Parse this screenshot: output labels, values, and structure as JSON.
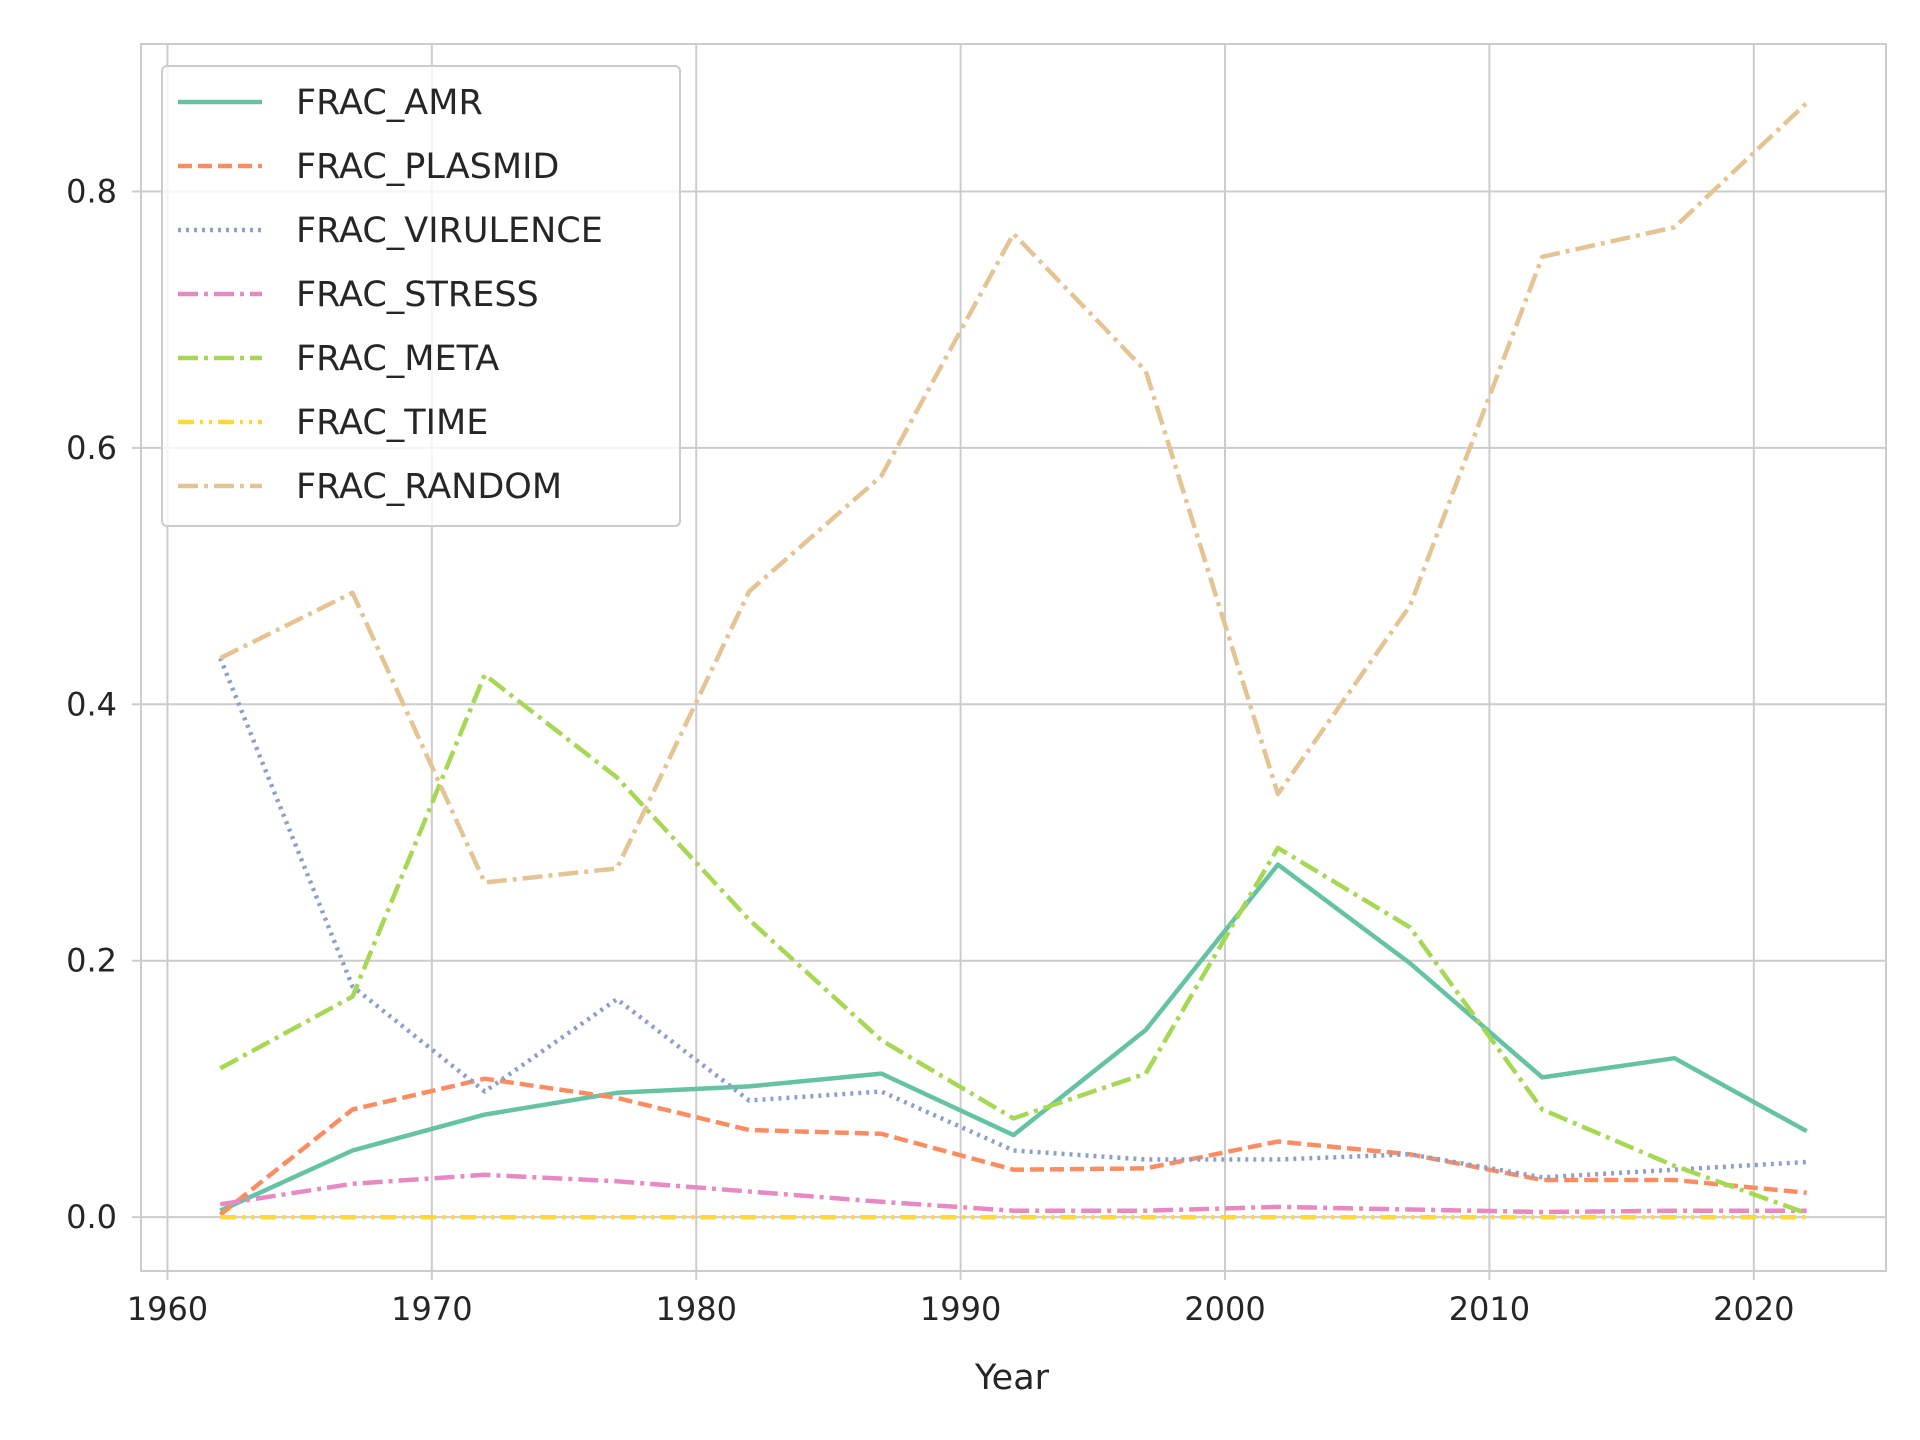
{
  "chart_data": {
    "type": "line",
    "title": "",
    "xlabel": "Year",
    "ylabel": "",
    "xlim": [
      1959,
      2025
    ],
    "ylim": [
      -0.042,
      0.915
    ],
    "xticks": [
      1960,
      1970,
      1980,
      1990,
      2000,
      2010,
      2020
    ],
    "yticks": [
      0.0,
      0.2,
      0.4,
      0.6,
      0.8
    ],
    "ytick_labels": [
      "0.0",
      "0.2",
      "0.4",
      "0.6",
      "0.8"
    ],
    "grid": true,
    "legend_position": "upper-left",
    "x": [
      1962,
      1967,
      1972,
      1977,
      1982,
      1987,
      1992,
      1997,
      2002,
      2007,
      2012,
      2017,
      2022
    ],
    "series": [
      {
        "name": "FRAC_AMR",
        "color": "#66c2a5",
        "dash": "solid",
        "values": [
          0.005,
          0.052,
          0.08,
          0.097,
          0.102,
          0.112,
          0.064,
          0.146,
          0.275,
          0.198,
          0.109,
          0.124,
          0.067
        ]
      },
      {
        "name": "FRAC_PLASMID",
        "color": "#fc8d62",
        "dash": "dashed",
        "values": [
          0.002,
          0.084,
          0.108,
          0.093,
          0.068,
          0.065,
          0.037,
          0.038,
          0.059,
          0.049,
          0.029,
          0.029,
          0.019
        ]
      },
      {
        "name": "FRAC_VIRULENCE",
        "color": "#8da0cb",
        "dash": "dotted",
        "values": [
          0.436,
          0.18,
          0.098,
          0.17,
          0.091,
          0.098,
          0.052,
          0.045,
          0.045,
          0.049,
          0.031,
          0.037,
          0.043
        ]
      },
      {
        "name": "FRAC_STRESS",
        "color": "#e78ac3",
        "dash": "dashdot",
        "values": [
          0.01,
          0.026,
          0.033,
          0.028,
          0.02,
          0.012,
          0.005,
          0.005,
          0.008,
          0.006,
          0.004,
          0.005,
          0.005
        ]
      },
      {
        "name": "FRAC_META",
        "color": "#a6d854",
        "dash": "dashdot",
        "values": [
          0.116,
          0.172,
          0.423,
          0.343,
          0.232,
          0.138,
          0.077,
          0.112,
          0.288,
          0.226,
          0.084,
          0.04,
          0.003
        ]
      },
      {
        "name": "FRAC_TIME",
        "color": "#ffd92f",
        "dash": "dashdotdot",
        "values": [
          0.0,
          0.0,
          0.0,
          0.0,
          0.0,
          0.0,
          0.0,
          0.0,
          0.0,
          0.0,
          0.0,
          0.0,
          0.0
        ]
      },
      {
        "name": "FRAC_RANDOM",
        "color": "#e5c494",
        "dash": "dashdot",
        "values": [
          0.436,
          0.487,
          0.261,
          0.272,
          0.488,
          0.578,
          0.767,
          0.66,
          0.33,
          0.477,
          0.749,
          0.772,
          0.869
        ]
      }
    ]
  }
}
